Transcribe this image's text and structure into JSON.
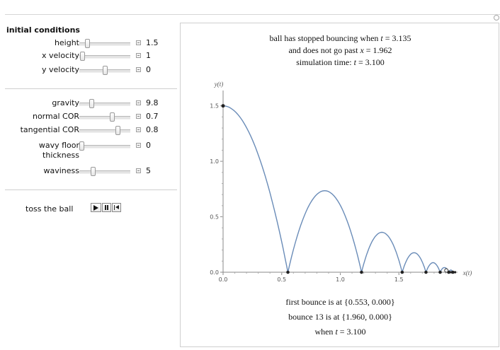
{
  "controls": {
    "section_title": "initial conditions",
    "sliders": [
      {
        "label": "height",
        "value": "1.5",
        "fraction": 0.12
      },
      {
        "label": "x velocity",
        "value": "1",
        "fraction": 0.02
      },
      {
        "label": "y velocity",
        "value": "0",
        "fraction": 0.5
      },
      {
        "label": "gravity",
        "value": "9.8",
        "fraction": 0.22
      },
      {
        "label": "normal COR",
        "value": "0.7",
        "fraction": 0.66
      },
      {
        "label": "tangential COR",
        "value": "0.8",
        "fraction": 0.78
      },
      {
        "label": "wavy floor thickness",
        "value": "0",
        "fraction": 0.0
      },
      {
        "label": "waviness",
        "value": "5",
        "fraction": 0.24
      }
    ],
    "toss_label": "toss the ball"
  },
  "header_lines": {
    "line1_pre": "ball has stopped bouncing when ",
    "line1_var": "t",
    "line1_post": " = 3.135",
    "line2_pre": "and does not go past ",
    "line2_var": "x",
    "line2_post": " = 1.962",
    "line3_pre": "simulation time: ",
    "line3_var": "t",
    "line3_post": " = 3.100"
  },
  "footer_lines": {
    "line1": "first bounce is at {0.553, 0.000}",
    "line2": "bounce 13 is at {1.960, 0.000}",
    "line3_pre": "when ",
    "line3_var": "t",
    "line3_post": " = 3.100"
  },
  "chart_data": {
    "type": "line",
    "xlabel": "x(t)",
    "ylabel": "y(t)",
    "xlim": [
      0,
      2.0
    ],
    "ylim": [
      0,
      1.6
    ],
    "xticks": [
      "0.0",
      "0.5",
      "1.0",
      "1.5"
    ],
    "yticks": [
      "0.0",
      "0.5",
      "1.0",
      "1.5"
    ],
    "bounce_points_x": [
      0.553,
      1.181,
      1.528,
      1.731,
      1.852,
      1.925,
      1.96
    ],
    "arc_peaks_y": [
      0.735,
      0.36,
      0.176,
      0.086,
      0.042,
      0.02,
      0.01
    ],
    "start_point": {
      "x": 0.0,
      "y": 1.5
    },
    "line_color": "#6a8cb8"
  }
}
